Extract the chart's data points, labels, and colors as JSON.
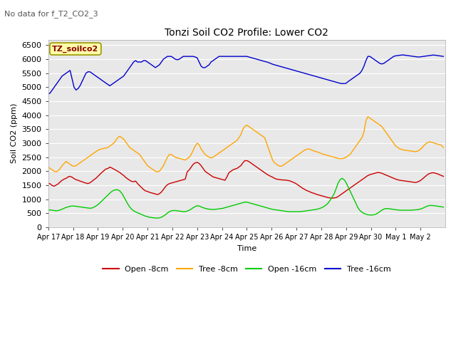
{
  "title": "Tonzi Soil CO2 Profile: Lower CO2",
  "subtitle": "No data for f_T2_CO2_3",
  "ylabel": "Soil CO2 (ppm)",
  "xlabel": "Time",
  "legend_label": "TZ_soilco2",
  "ylim": [
    0,
    6700
  ],
  "yticks": [
    0,
    500,
    1000,
    1500,
    2000,
    2500,
    3000,
    3500,
    4000,
    4500,
    5000,
    5500,
    6000,
    6500
  ],
  "fig_bg": "#ffffff",
  "plot_bg": "#e8e8e8",
  "series": {
    "open_8cm": {
      "color": "#cc0000",
      "label": "Open -8cm"
    },
    "tree_8cm": {
      "color": "#ffa500",
      "label": "Tree -8cm"
    },
    "open_16cm": {
      "color": "#00cc00",
      "label": "Open -16cm"
    },
    "tree_16cm": {
      "color": "#0000cc",
      "label": "Tree -16cm"
    }
  },
  "open_8cm": [
    1580,
    1550,
    1490,
    1470,
    1510,
    1550,
    1620,
    1680,
    1720,
    1750,
    1800,
    1820,
    1790,
    1740,
    1700,
    1680,
    1650,
    1630,
    1600,
    1580,
    1560,
    1590,
    1640,
    1700,
    1750,
    1820,
    1890,
    1960,
    2020,
    2080,
    2100,
    2150,
    2120,
    2080,
    2040,
    2000,
    1960,
    1900,
    1850,
    1780,
    1730,
    1680,
    1640,
    1630,
    1650,
    1560,
    1490,
    1420,
    1350,
    1300,
    1280,
    1250,
    1230,
    1210,
    1190,
    1170,
    1200,
    1260,
    1350,
    1450,
    1520,
    1560,
    1580,
    1600,
    1620,
    1640,
    1660,
    1680,
    1700,
    1720,
    1980,
    2050,
    2150,
    2250,
    2300,
    2320,
    2280,
    2200,
    2100,
    2000,
    1950,
    1900,
    1850,
    1800,
    1780,
    1760,
    1740,
    1720,
    1700,
    1680,
    1800,
    1950,
    2000,
    2050,
    2080,
    2100,
    2150,
    2200,
    2300,
    2380,
    2380,
    2350,
    2300,
    2250,
    2200,
    2150,
    2100,
    2050,
    2000,
    1950,
    1900,
    1860,
    1820,
    1790,
    1750,
    1720,
    1710,
    1700,
    1690,
    1690,
    1680,
    1670,
    1650,
    1620,
    1590,
    1550,
    1500,
    1450,
    1400,
    1360,
    1320,
    1290,
    1260,
    1230,
    1210,
    1180,
    1160,
    1140,
    1120,
    1100,
    1080,
    1060,
    1050,
    1040,
    1050,
    1060,
    1100,
    1150,
    1200,
    1250,
    1300,
    1350,
    1400,
    1450,
    1500,
    1550,
    1600,
    1650,
    1700,
    1750,
    1800,
    1850,
    1880,
    1900,
    1920,
    1940,
    1960,
    1950,
    1930,
    1900,
    1870,
    1840,
    1810,
    1780,
    1750,
    1720,
    1700,
    1680,
    1670,
    1660,
    1650,
    1640,
    1630,
    1620,
    1610,
    1600,
    1620,
    1650,
    1700,
    1760,
    1820,
    1880,
    1920,
    1940,
    1950,
    1930,
    1910,
    1880,
    1850,
    1820
  ],
  "tree_8cm": [
    2150,
    2100,
    2050,
    2000,
    1980,
    2020,
    2100,
    2200,
    2280,
    2350,
    2300,
    2250,
    2200,
    2180,
    2200,
    2250,
    2300,
    2350,
    2400,
    2450,
    2500,
    2550,
    2600,
    2650,
    2700,
    2750,
    2780,
    2800,
    2820,
    2830,
    2850,
    2900,
    2950,
    3000,
    3100,
    3200,
    3250,
    3200,
    3150,
    3050,
    2950,
    2850,
    2800,
    2750,
    2700,
    2650,
    2600,
    2500,
    2400,
    2300,
    2200,
    2150,
    2100,
    2050,
    2000,
    1980,
    2000,
    2100,
    2200,
    2350,
    2500,
    2600,
    2600,
    2550,
    2500,
    2480,
    2460,
    2440,
    2420,
    2400,
    2450,
    2500,
    2600,
    2750,
    2900,
    3000,
    2950,
    2800,
    2700,
    2600,
    2550,
    2500,
    2480,
    2500,
    2550,
    2600,
    2650,
    2700,
    2750,
    2800,
    2850,
    2900,
    2950,
    3000,
    3050,
    3100,
    3200,
    3300,
    3500,
    3600,
    3650,
    3600,
    3550,
    3500,
    3450,
    3400,
    3350,
    3300,
    3250,
    3200,
    3000,
    2800,
    2600,
    2400,
    2300,
    2250,
    2200,
    2180,
    2200,
    2250,
    2300,
    2350,
    2400,
    2450,
    2500,
    2550,
    2600,
    2650,
    2700,
    2750,
    2780,
    2800,
    2780,
    2750,
    2720,
    2700,
    2680,
    2650,
    2620,
    2600,
    2580,
    2560,
    2540,
    2520,
    2500,
    2480,
    2460,
    2450,
    2450,
    2470,
    2500,
    2550,
    2600,
    2700,
    2800,
    2900,
    3000,
    3100,
    3200,
    3400,
    3800,
    3950,
    3900,
    3850,
    3800,
    3750,
    3700,
    3650,
    3600,
    3500,
    3400,
    3300,
    3200,
    3100,
    3000,
    2900,
    2850,
    2800,
    2780,
    2760,
    2750,
    2740,
    2730,
    2720,
    2710,
    2700,
    2720,
    2760,
    2820,
    2900,
    2970,
    3020,
    3050,
    3040,
    3020,
    2990,
    2970,
    2950,
    2930,
    2850
  ],
  "open_16cm": [
    620,
    620,
    610,
    600,
    590,
    600,
    620,
    650,
    680,
    710,
    730,
    750,
    760,
    760,
    750,
    740,
    730,
    720,
    710,
    700,
    690,
    680,
    690,
    720,
    760,
    810,
    870,
    940,
    1010,
    1080,
    1150,
    1220,
    1280,
    1320,
    1340,
    1340,
    1300,
    1220,
    1100,
    970,
    840,
    730,
    650,
    590,
    550,
    520,
    490,
    460,
    430,
    400,
    380,
    360,
    350,
    340,
    335,
    330,
    340,
    360,
    400,
    450,
    510,
    560,
    590,
    600,
    600,
    590,
    580,
    570,
    560,
    560,
    580,
    610,
    650,
    700,
    740,
    770,
    760,
    730,
    700,
    680,
    660,
    650,
    640,
    640,
    640,
    650,
    660,
    670,
    680,
    700,
    720,
    740,
    760,
    780,
    800,
    820,
    840,
    860,
    880,
    900,
    900,
    880,
    860,
    840,
    820,
    800,
    780,
    760,
    740,
    720,
    700,
    680,
    660,
    640,
    630,
    620,
    610,
    600,
    590,
    580,
    570,
    560,
    560,
    560,
    560,
    560,
    560,
    565,
    570,
    580,
    590,
    600,
    610,
    620,
    630,
    640,
    660,
    680,
    710,
    750,
    800,
    870,
    970,
    1080,
    1200,
    1380,
    1580,
    1700,
    1750,
    1700,
    1600,
    1450,
    1300,
    1150,
    1000,
    850,
    700,
    600,
    540,
    500,
    470,
    450,
    440,
    440,
    450,
    470,
    510,
    560,
    610,
    650,
    670,
    670,
    660,
    650,
    640,
    630,
    620,
    615,
    610,
    610,
    610,
    610,
    610,
    615,
    620,
    625,
    630,
    645,
    665,
    695,
    730,
    760,
    780,
    780,
    775,
    765,
    755,
    745,
    735,
    720
  ],
  "tree_16cm": [
    4750,
    4800,
    4900,
    5000,
    5100,
    5200,
    5300,
    5400,
    5450,
    5500,
    5550,
    5600,
    5300,
    5000,
    4900,
    4950,
    5050,
    5200,
    5350,
    5500,
    5550,
    5550,
    5500,
    5450,
    5400,
    5350,
    5300,
    5250,
    5200,
    5150,
    5100,
    5050,
    5100,
    5150,
    5200,
    5250,
    5300,
    5350,
    5400,
    5500,
    5600,
    5700,
    5800,
    5900,
    5950,
    5900,
    5900,
    5900,
    5950,
    5950,
    5900,
    5850,
    5800,
    5750,
    5700,
    5750,
    5800,
    5900,
    6000,
    6050,
    6100,
    6100,
    6100,
    6050,
    6000,
    5980,
    6000,
    6050,
    6100,
    6100,
    6100,
    6100,
    6100,
    6100,
    6080,
    6050,
    5900,
    5750,
    5700,
    5700,
    5750,
    5800,
    5900,
    5950,
    6000,
    6050,
    6100,
    6100,
    6100,
    6100,
    6100,
    6100,
    6100,
    6100,
    6100,
    6100,
    6100,
    6100,
    6100,
    6100,
    6100,
    6080,
    6060,
    6040,
    6020,
    6000,
    5980,
    5960,
    5940,
    5920,
    5900,
    5880,
    5850,
    5820,
    5800,
    5780,
    5760,
    5740,
    5720,
    5700,
    5680,
    5660,
    5640,
    5620,
    5600,
    5580,
    5560,
    5540,
    5520,
    5500,
    5480,
    5460,
    5440,
    5420,
    5400,
    5380,
    5360,
    5340,
    5320,
    5300,
    5280,
    5260,
    5240,
    5220,
    5200,
    5180,
    5160,
    5140,
    5130,
    5130,
    5140,
    5200,
    5250,
    5300,
    5350,
    5400,
    5450,
    5500,
    5600,
    5750,
    5950,
    6100,
    6100,
    6050,
    6000,
    5950,
    5900,
    5850,
    5830,
    5850,
    5900,
    5950,
    6000,
    6050,
    6100,
    6120,
    6130,
    6140,
    6150,
    6150,
    6140,
    6130,
    6120,
    6110,
    6100,
    6090,
    6080,
    6080,
    6090,
    6100,
    6110,
    6120,
    6130,
    6140,
    6150,
    6140,
    6130,
    6120,
    6110,
    6100
  ]
}
